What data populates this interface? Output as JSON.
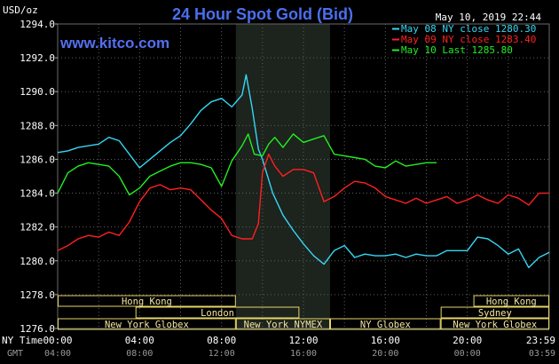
{
  "title": "24 Hour Spot Gold (Bid)",
  "brand": "www.kitco.com",
  "timestamp": "May 10, 2019 22:44",
  "unit": "USD/oz",
  "colors": {
    "background": "#000000",
    "highlight": "#1d231d",
    "grid": "#5e5e5e",
    "may08": "#36d7f5",
    "may09": "#ff2020",
    "may10": "#22ee22",
    "session_box": "#e6d56a"
  },
  "legend": [
    {
      "label": "May 08 NY close 1280.30",
      "color": "#36d7f5"
    },
    {
      "label": "May 09 NY close 1283.40",
      "color": "#ff2020"
    },
    {
      "label": "May 10 Last 1285.80",
      "color": "#22ee22"
    }
  ],
  "row_labels": {
    "ny_time": "NY Time",
    "gmt": "GMT"
  },
  "x_ticks_ny": [
    "00:00",
    "04:00",
    "08:00",
    "12:00",
    "16:00",
    "20:00",
    "23:59"
  ],
  "x_ticks_gmt": [
    "04:00",
    "08:00",
    "12:00",
    "16:00",
    "20:00",
    "00:00",
    "03:59"
  ],
  "y_ticks": [
    "1294.0",
    "1292.0",
    "1290.0",
    "1288.0",
    "1286.0",
    "1284.0",
    "1282.0",
    "1280.0",
    "1278.0",
    "1276.0"
  ],
  "sessions": [
    {
      "label": "Hong Kong",
      "start": 0,
      "end": 8.7,
      "row": 0
    },
    {
      "label": "London",
      "start": 3.8,
      "end": 11.8,
      "row": 1
    },
    {
      "label": "New York Globex",
      "start": 0,
      "end": 8.7,
      "row": 2
    },
    {
      "label": "New York NYMEX",
      "start": 8.7,
      "end": 13.3,
      "row": 2
    },
    {
      "label": "NY Globex",
      "start": 13.3,
      "end": 18.7,
      "row": 2
    },
    {
      "label": "Hong Kong",
      "start": 20.3,
      "end": 24,
      "row": 0
    },
    {
      "label": "Sydney",
      "start": 18.7,
      "end": 24,
      "row": 1
    },
    {
      "label": "New York Globex",
      "start": 18.7,
      "end": 24,
      "row": 2
    }
  ],
  "chart_data": {
    "type": "line",
    "title": "24 Hour Spot Gold (Bid)",
    "ylabel": "USD/oz",
    "x_unit": "hours (NY time)",
    "xlim": [
      0,
      24
    ],
    "ylim": [
      1276,
      1294
    ],
    "grid": true,
    "legend_position": "top-right",
    "highlight_range": [
      8.7,
      13.3
    ],
    "series": [
      {
        "name": "May 08 NY close 1280.30",
        "color": "#36d7f5",
        "x": [
          0,
          0.5,
          1,
          1.5,
          2,
          2.5,
          3,
          3.5,
          4,
          4.5,
          5,
          5.5,
          6,
          6.5,
          7,
          7.5,
          8,
          8.5,
          9,
          9.2,
          9.5,
          9.8,
          10,
          10.5,
          11,
          11.5,
          12,
          12.5,
          13,
          13.5,
          14,
          14.5,
          15,
          15.5,
          16,
          16.5,
          17,
          17.5,
          18,
          18.5,
          19,
          19.5,
          20,
          20.5,
          21,
          21.5,
          22,
          22.5,
          23,
          23.5,
          24
        ],
        "values": [
          1286.4,
          1286.5,
          1286.7,
          1286.8,
          1286.9,
          1287.3,
          1287.1,
          1286.3,
          1285.5,
          1286.0,
          1286.5,
          1287.0,
          1287.4,
          1288.1,
          1288.9,
          1289.4,
          1289.6,
          1289.1,
          1289.8,
          1291.0,
          1289.0,
          1286.6,
          1286.0,
          1284.0,
          1282.7,
          1281.8,
          1281.0,
          1280.3,
          1279.8,
          1280.6,
          1280.9,
          1280.2,
          1280.4,
          1280.3,
          1280.3,
          1280.4,
          1280.2,
          1280.4,
          1280.3,
          1280.3,
          1280.6,
          1280.6,
          1280.6,
          1281.4,
          1281.3,
          1280.9,
          1280.4,
          1280.7,
          1279.6,
          1280.2,
          1280.5
        ]
      },
      {
        "name": "May 09 NY close 1283.40",
        "color": "#ff2020",
        "x": [
          0,
          0.5,
          1,
          1.5,
          2,
          2.5,
          3,
          3.5,
          4,
          4.5,
          5,
          5.5,
          6,
          6.5,
          7,
          7.5,
          8,
          8.5,
          9,
          9.5,
          9.8,
          10,
          10.3,
          10.6,
          11,
          11.5,
          12,
          12.5,
          13,
          13.5,
          14,
          14.5,
          15,
          15.5,
          16,
          16.5,
          17,
          17.5,
          18,
          18.5,
          19,
          19.5,
          20,
          20.5,
          21,
          21.5,
          22,
          22.5,
          23,
          23.5,
          24
        ],
        "values": [
          1280.6,
          1280.9,
          1281.3,
          1281.5,
          1281.4,
          1281.7,
          1281.5,
          1282.3,
          1283.5,
          1284.3,
          1284.5,
          1284.2,
          1284.3,
          1284.2,
          1283.6,
          1283.0,
          1282.5,
          1281.5,
          1281.3,
          1281.3,
          1282.2,
          1285.2,
          1286.3,
          1285.6,
          1285.0,
          1285.4,
          1285.4,
          1285.2,
          1283.5,
          1283.8,
          1284.3,
          1284.7,
          1284.6,
          1284.3,
          1283.8,
          1283.6,
          1283.4,
          1283.7,
          1283.4,
          1283.6,
          1283.8,
          1283.4,
          1283.6,
          1283.9,
          1283.6,
          1283.4,
          1283.9,
          1283.7,
          1283.3,
          1284.0,
          1284.0
        ]
      },
      {
        "name": "May 10 Last 1285.80",
        "color": "#22ee22",
        "x": [
          0,
          0.5,
          1,
          1.5,
          2,
          2.5,
          3,
          3.5,
          4,
          4.5,
          5,
          5.5,
          6,
          6.5,
          7,
          7.5,
          8,
          8.5,
          9,
          9.3,
          9.6,
          10,
          10.3,
          10.6,
          11,
          11.5,
          12,
          12.5,
          13,
          13.5,
          14,
          14.5,
          15,
          15.5,
          16,
          16.5,
          17,
          17.5,
          18,
          18.5
        ],
        "values": [
          1284.0,
          1285.2,
          1285.6,
          1285.8,
          1285.7,
          1285.6,
          1285.0,
          1283.9,
          1284.3,
          1285.0,
          1285.3,
          1285.6,
          1285.8,
          1285.8,
          1285.7,
          1285.5,
          1284.4,
          1285.9,
          1286.8,
          1287.5,
          1286.3,
          1286.2,
          1286.9,
          1287.3,
          1286.7,
          1287.5,
          1287.0,
          1287.2,
          1287.4,
          1286.3,
          1286.2,
          1286.1,
          1286.0,
          1285.6,
          1285.5,
          1285.9,
          1285.6,
          1285.7,
          1285.8,
          1285.8
        ]
      }
    ]
  }
}
